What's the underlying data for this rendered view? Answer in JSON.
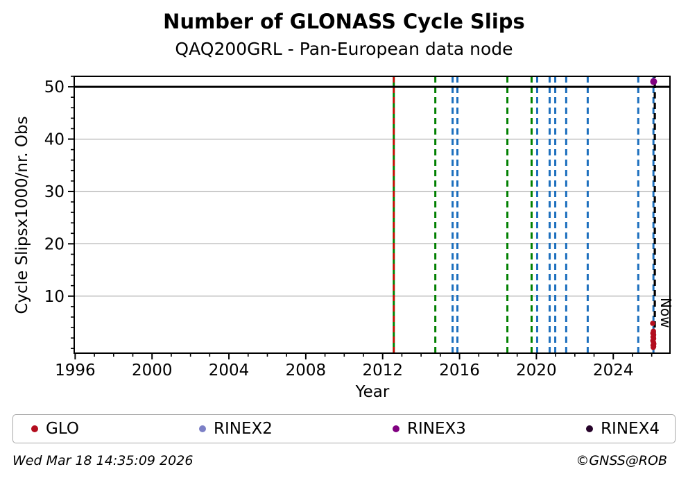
{
  "title": "Number of GLONASS Cycle Slips",
  "subtitle": "QAQ200GRL - Pan-European data node",
  "footer": {
    "timestamp": "Wed Mar 18 14:35:09 2026",
    "credit": "©GNSS@ROB"
  },
  "legend": {
    "items": [
      {
        "label": "GLO",
        "color": "#b30d1e"
      },
      {
        "label": "RINEX2",
        "color": "#7c80c6"
      },
      {
        "label": "RINEX3",
        "color": "#800080"
      },
      {
        "label": "RINEX4",
        "color": "#26032a"
      }
    ]
  },
  "chart_data": {
    "type": "scatter",
    "title": "Number of GLONASS Cycle Slips",
    "subtitle": "QAQ200GRL - Pan-European data node",
    "xlabel": "Year",
    "ylabel": "Cycle Slipsx1000/nr. Obs",
    "xlim": [
      1995.95,
      2026.95
    ],
    "ylim": [
      -0.9,
      52.0
    ],
    "xticks_major": [
      1996,
      2000,
      2004,
      2008,
      2012,
      2016,
      2020,
      2024
    ],
    "xtick_minor_step": 1,
    "yticks_major": [
      10,
      20,
      30,
      40,
      50
    ],
    "ytick_minor_step": 2,
    "grid": "horizontal",
    "grid_color": "#b3b3b3",
    "hline": {
      "y": 50,
      "color": "#000000",
      "width": 3
    },
    "vlines": [
      {
        "x": 2012.58,
        "color": "#008000",
        "style": "solid",
        "width": 3
      },
      {
        "x": 2012.58,
        "color": "#d40000",
        "style": "dashed",
        "width": 2.4
      },
      {
        "x": 2014.74,
        "color": "#008000",
        "style": "dashed",
        "width": 3
      },
      {
        "x": 2015.64,
        "color": "#1c6fbe",
        "style": "dashed",
        "width": 3
      },
      {
        "x": 2015.89,
        "color": "#1c6fbe",
        "style": "dashed",
        "width": 3
      },
      {
        "x": 2018.49,
        "color": "#008000",
        "style": "dashed",
        "width": 3
      },
      {
        "x": 2019.75,
        "color": "#008000",
        "style": "dashed",
        "width": 3
      },
      {
        "x": 2020.04,
        "color": "#1c6fbe",
        "style": "dashed",
        "width": 3
      },
      {
        "x": 2020.69,
        "color": "#1c6fbe",
        "style": "dashed",
        "width": 3
      },
      {
        "x": 2020.98,
        "color": "#1c6fbe",
        "style": "dashed",
        "width": 3
      },
      {
        "x": 2021.55,
        "color": "#1c6fbe",
        "style": "dashed",
        "width": 3
      },
      {
        "x": 2022.67,
        "color": "#1c6fbe",
        "style": "dashed",
        "width": 3
      },
      {
        "x": 2025.3,
        "color": "#1c6fbe",
        "style": "dashed",
        "width": 3
      },
      {
        "x": 2026.09,
        "color": "#1c6fbe",
        "style": "dashed",
        "width": 3
      }
    ],
    "now_line": {
      "x": 2026.16,
      "label": "Now",
      "color": "#000000",
      "style": "dashed",
      "width": 3.2
    },
    "legend_position": "bottom",
    "series": [
      {
        "name": "GLO",
        "color": "#b30d1e",
        "marker_radius": 3.8,
        "points": [
          [
            2026.05,
            4.8
          ],
          [
            2026.09,
            3.3
          ],
          [
            2026.06,
            2.9
          ],
          [
            2026.1,
            2.6
          ],
          [
            2026.07,
            2.2
          ],
          [
            2026.1,
            1.9
          ],
          [
            2026.06,
            1.5
          ],
          [
            2026.09,
            1.2
          ],
          [
            2026.11,
            0.9
          ],
          [
            2026.07,
            0.6
          ],
          [
            2026.1,
            0.4
          ],
          [
            2026.08,
            0.2
          ]
        ]
      },
      {
        "name": "RINEX2",
        "color": "#7c80c6",
        "marker_radius": 4.5,
        "points": []
      },
      {
        "name": "RINEX3",
        "color": "#800080",
        "marker_radius": 5,
        "points": [
          [
            2026.1,
            51.0
          ]
        ]
      },
      {
        "name": "RINEX4",
        "color": "#26032a",
        "marker_radius": 4.5,
        "points": []
      }
    ]
  }
}
